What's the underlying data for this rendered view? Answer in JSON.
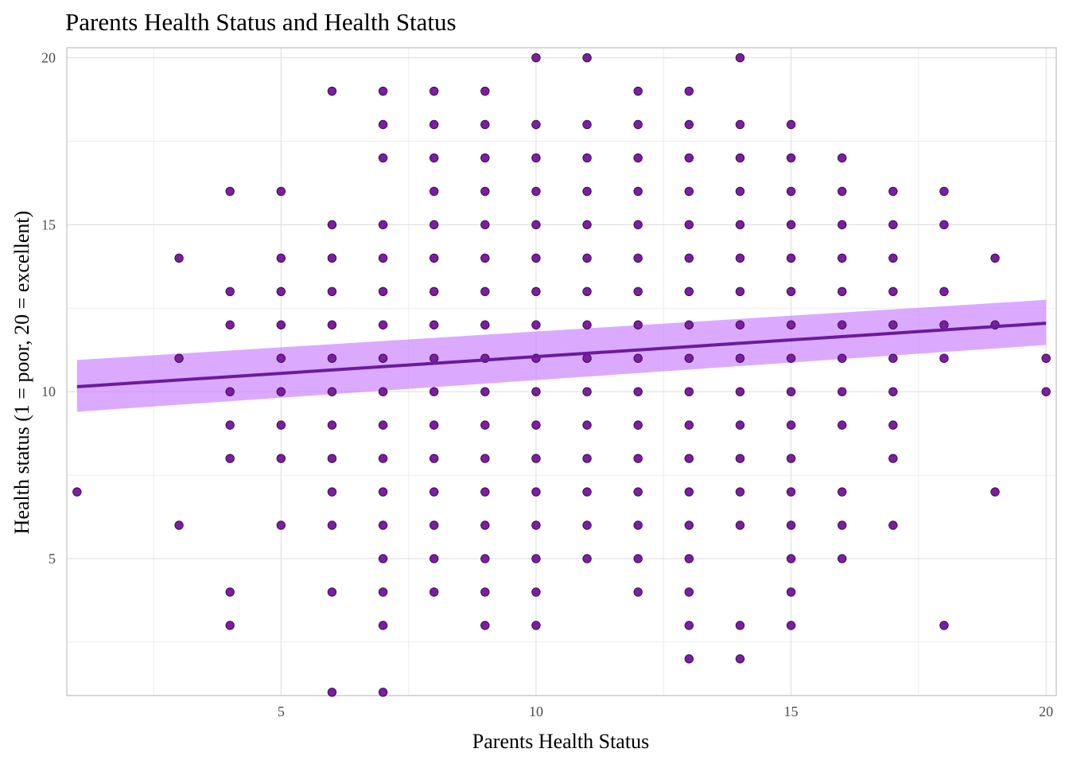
{
  "chart_data": {
    "type": "scatter",
    "title": "Parents Health Status and Health Status",
    "xlabel": "Parents Health Status",
    "ylabel": "Health status (1 = poor, 20 = excellent)",
    "xlim": [
      0.8,
      20.2
    ],
    "ylim": [
      0.9,
      20.3
    ],
    "x_ticks": [
      5,
      10,
      15,
      20
    ],
    "y_ticks": [
      5,
      10,
      15,
      20
    ],
    "x_tick_labels": [
      "5",
      "10",
      "15",
      "20"
    ],
    "y_tick_labels": [
      "5",
      "10",
      "15",
      "20"
    ],
    "grid": true,
    "colors": {
      "point_fill": "#7B1FA2",
      "point_stroke": "#3d0a52",
      "line": "#6A1B9A",
      "ribbon": "#C77CFF"
    },
    "points": [
      [
        1,
        7
      ],
      [
        3,
        14
      ],
      [
        3,
        11
      ],
      [
        3,
        6
      ],
      [
        4,
        16
      ],
      [
        4,
        13
      ],
      [
        4,
        12
      ],
      [
        4,
        10
      ],
      [
        4,
        9
      ],
      [
        4,
        8
      ],
      [
        4,
        4
      ],
      [
        4,
        3
      ],
      [
        5,
        16
      ],
      [
        5,
        14
      ],
      [
        5,
        13
      ],
      [
        5,
        12
      ],
      [
        5,
        11
      ],
      [
        5,
        10
      ],
      [
        5,
        9
      ],
      [
        5,
        8
      ],
      [
        5,
        6
      ],
      [
        6,
        19
      ],
      [
        6,
        15
      ],
      [
        6,
        14
      ],
      [
        6,
        13
      ],
      [
        6,
        12
      ],
      [
        6,
        11
      ],
      [
        6,
        10
      ],
      [
        6,
        9
      ],
      [
        6,
        8
      ],
      [
        6,
        7
      ],
      [
        6,
        6
      ],
      [
        6,
        4
      ],
      [
        6,
        1
      ],
      [
        7,
        19
      ],
      [
        7,
        18
      ],
      [
        7,
        17
      ],
      [
        7,
        15
      ],
      [
        7,
        14
      ],
      [
        7,
        13
      ],
      [
        7,
        12
      ],
      [
        7,
        11
      ],
      [
        7,
        10
      ],
      [
        7,
        9
      ],
      [
        7,
        8
      ],
      [
        7,
        7
      ],
      [
        7,
        6
      ],
      [
        7,
        5
      ],
      [
        7,
        4
      ],
      [
        7,
        3
      ],
      [
        7,
        1
      ],
      [
        8,
        19
      ],
      [
        8,
        18
      ],
      [
        8,
        17
      ],
      [
        8,
        16
      ],
      [
        8,
        15
      ],
      [
        8,
        14
      ],
      [
        8,
        13
      ],
      [
        8,
        12
      ],
      [
        8,
        11
      ],
      [
        8,
        10
      ],
      [
        8,
        9
      ],
      [
        8,
        8
      ],
      [
        8,
        7
      ],
      [
        8,
        6
      ],
      [
        8,
        5
      ],
      [
        8,
        4
      ],
      [
        9,
        19
      ],
      [
        9,
        18
      ],
      [
        9,
        17
      ],
      [
        9,
        16
      ],
      [
        9,
        15
      ],
      [
        9,
        14
      ],
      [
        9,
        13
      ],
      [
        9,
        12
      ],
      [
        9,
        11
      ],
      [
        9,
        10
      ],
      [
        9,
        9
      ],
      [
        9,
        8
      ],
      [
        9,
        7
      ],
      [
        9,
        6
      ],
      [
        9,
        5
      ],
      [
        9,
        4
      ],
      [
        9,
        3
      ],
      [
        10,
        20
      ],
      [
        10,
        18
      ],
      [
        10,
        17
      ],
      [
        10,
        16
      ],
      [
        10,
        15
      ],
      [
        10,
        14
      ],
      [
        10,
        13
      ],
      [
        10,
        12
      ],
      [
        10,
        11
      ],
      [
        10,
        10
      ],
      [
        10,
        9
      ],
      [
        10,
        8
      ],
      [
        10,
        7
      ],
      [
        10,
        6
      ],
      [
        10,
        5
      ],
      [
        10,
        4
      ],
      [
        10,
        3
      ],
      [
        11,
        20
      ],
      [
        11,
        18
      ],
      [
        11,
        17
      ],
      [
        11,
        16
      ],
      [
        11,
        15
      ],
      [
        11,
        14
      ],
      [
        11,
        13
      ],
      [
        11,
        12
      ],
      [
        11,
        11
      ],
      [
        11,
        10
      ],
      [
        11,
        9
      ],
      [
        11,
        8
      ],
      [
        11,
        7
      ],
      [
        11,
        6
      ],
      [
        11,
        5
      ],
      [
        12,
        19
      ],
      [
        12,
        18
      ],
      [
        12,
        17
      ],
      [
        12,
        16
      ],
      [
        12,
        15
      ],
      [
        12,
        14
      ],
      [
        12,
        13
      ],
      [
        12,
        12
      ],
      [
        12,
        11
      ],
      [
        12,
        10
      ],
      [
        12,
        9
      ],
      [
        12,
        8
      ],
      [
        12,
        7
      ],
      [
        12,
        6
      ],
      [
        12,
        5
      ],
      [
        12,
        4
      ],
      [
        13,
        19
      ],
      [
        13,
        18
      ],
      [
        13,
        17
      ],
      [
        13,
        16
      ],
      [
        13,
        15
      ],
      [
        13,
        14
      ],
      [
        13,
        13
      ],
      [
        13,
        12
      ],
      [
        13,
        11
      ],
      [
        13,
        10
      ],
      [
        13,
        9
      ],
      [
        13,
        8
      ],
      [
        13,
        7
      ],
      [
        13,
        6
      ],
      [
        13,
        5
      ],
      [
        13,
        4
      ],
      [
        13,
        3
      ],
      [
        13,
        2
      ],
      [
        14,
        20
      ],
      [
        14,
        18
      ],
      [
        14,
        17
      ],
      [
        14,
        16
      ],
      [
        14,
        15
      ],
      [
        14,
        14
      ],
      [
        14,
        13
      ],
      [
        14,
        12
      ],
      [
        14,
        11
      ],
      [
        14,
        10
      ],
      [
        14,
        9
      ],
      [
        14,
        8
      ],
      [
        14,
        7
      ],
      [
        14,
        6
      ],
      [
        14,
        3
      ],
      [
        14,
        2
      ],
      [
        15,
        18
      ],
      [
        15,
        17
      ],
      [
        15,
        16
      ],
      [
        15,
        15
      ],
      [
        15,
        14
      ],
      [
        15,
        13
      ],
      [
        15,
        12
      ],
      [
        15,
        11
      ],
      [
        15,
        10
      ],
      [
        15,
        9
      ],
      [
        15,
        8
      ],
      [
        15,
        7
      ],
      [
        15,
        6
      ],
      [
        15,
        5
      ],
      [
        15,
        4
      ],
      [
        15,
        3
      ],
      [
        16,
        17
      ],
      [
        16,
        16
      ],
      [
        16,
        15
      ],
      [
        16,
        14
      ],
      [
        16,
        13
      ],
      [
        16,
        12
      ],
      [
        16,
        11
      ],
      [
        16,
        10
      ],
      [
        16,
        9
      ],
      [
        16,
        7
      ],
      [
        16,
        6
      ],
      [
        16,
        5
      ],
      [
        17,
        16
      ],
      [
        17,
        15
      ],
      [
        17,
        14
      ],
      [
        17,
        13
      ],
      [
        17,
        12
      ],
      [
        17,
        11
      ],
      [
        17,
        10
      ],
      [
        17,
        9
      ],
      [
        17,
        8
      ],
      [
        17,
        6
      ],
      [
        18,
        16
      ],
      [
        18,
        15
      ],
      [
        18,
        13
      ],
      [
        18,
        12
      ],
      [
        18,
        11
      ],
      [
        18,
        3
      ],
      [
        19,
        14
      ],
      [
        19,
        12
      ],
      [
        19,
        7
      ],
      [
        20,
        11
      ],
      [
        20,
        10
      ]
    ],
    "fit_line": {
      "method": "linear",
      "x": [
        1,
        20
      ],
      "y": [
        10.15,
        12.05
      ],
      "ci_lower": [
        9.4,
        11.4
      ],
      "ci_upper": [
        10.95,
        12.75
      ]
    }
  }
}
